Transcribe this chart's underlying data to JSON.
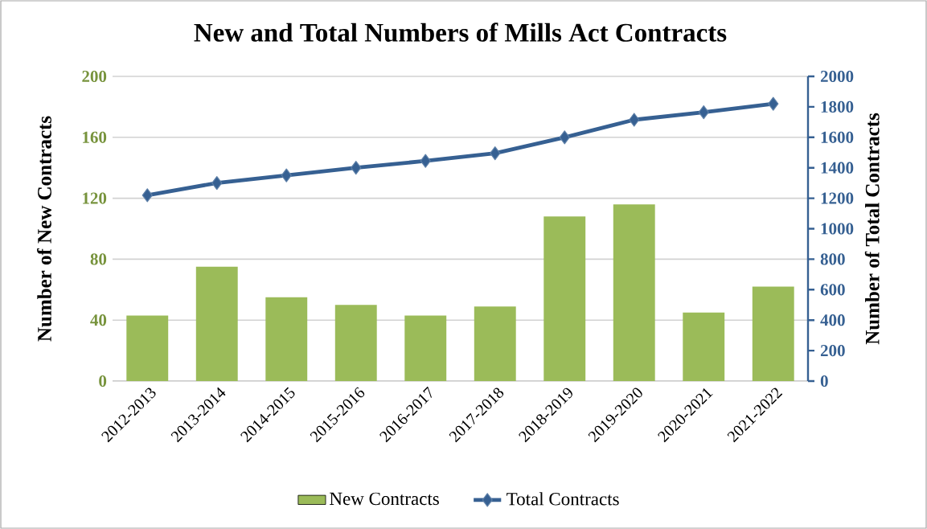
{
  "chart_data": {
    "type": "bar",
    "title": "New and Total Numbers of Mills Act Contracts",
    "ylabel": "Number of New Contracts",
    "y2label": "Number of Total Contracts",
    "categories": [
      "2012-2013",
      "2013-2014",
      "2014-2015",
      "2015-2016",
      "2016-2017",
      "2017-2018",
      "2018-2019",
      "2019-2020",
      "2020-2021",
      "2021-2022"
    ],
    "series": [
      {
        "name": "New Contracts",
        "color": "#9bbb59",
        "values": [
          43,
          75,
          55,
          50,
          43,
          49,
          108,
          116,
          45,
          62
        ]
      },
      {
        "name": "Total Contracts",
        "type": "line",
        "axis": "y2",
        "marker": "diamond",
        "color": "#366092",
        "values": [
          1220,
          1300,
          1350,
          1400,
          1445,
          1495,
          1600,
          1715,
          1765,
          1820
        ]
      }
    ],
    "ylim": [
      0,
      200
    ],
    "yticks": [
      0,
      40,
      80,
      120,
      160,
      200
    ],
    "y2lim": [
      0,
      2000
    ],
    "y2ticks": [
      0,
      200,
      400,
      600,
      800,
      1000,
      1200,
      1400,
      1600,
      1800,
      2000
    ],
    "grid": "y",
    "legend": "bottom"
  }
}
